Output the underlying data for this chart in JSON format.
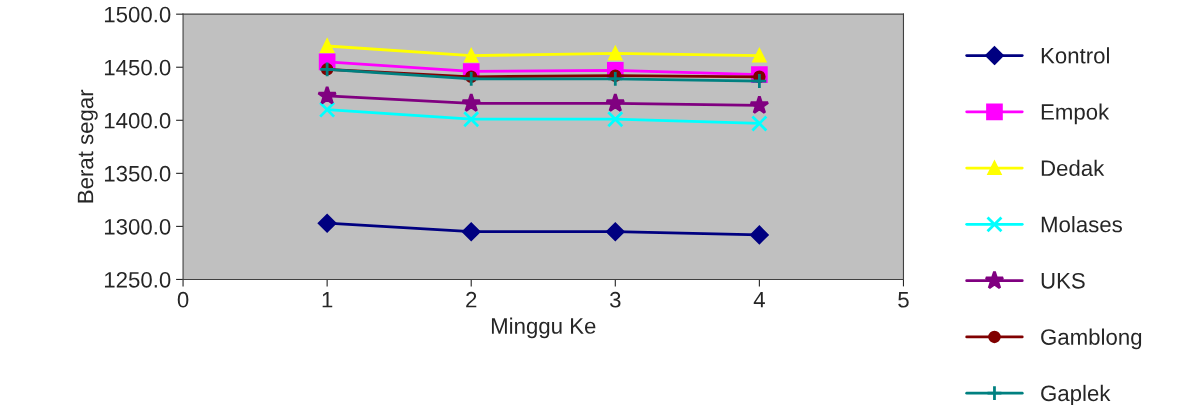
{
  "chart_data": {
    "type": "line",
    "xlabel": "Minggu Ke",
    "ylabel": "Berat segar",
    "x": [
      1,
      2,
      3,
      4
    ],
    "xlim": [
      0,
      5
    ],
    "xticks": [
      0,
      1,
      2,
      3,
      4,
      5
    ],
    "ylim": [
      1250,
      1500
    ],
    "yticks": [
      {
        "value": 1250,
        "label": "1250.0"
      },
      {
        "value": 1300,
        "label": "1300.0"
      },
      {
        "value": 1350,
        "label": "1350.0"
      },
      {
        "value": 1400,
        "label": "1400.0"
      },
      {
        "value": 1450,
        "label": "1450.0"
      },
      {
        "value": 1500,
        "label": "1500.0"
      }
    ],
    "grid": false,
    "legend": "right",
    "line_style": "solid",
    "series": [
      {
        "name": "Kontrol",
        "color": "#000080",
        "marker": "diamond",
        "values": [
          1303,
          1295,
          1295,
          1292
        ]
      },
      {
        "name": "Empok",
        "color": "#ff00ff",
        "marker": "square",
        "values": [
          1455,
          1446,
          1447,
          1443
        ]
      },
      {
        "name": "Dedak",
        "color": "#ffff00",
        "marker": "triangle",
        "values": [
          1470,
          1461,
          1463,
          1461
        ]
      },
      {
        "name": "Molases",
        "color": "#00ffff",
        "marker": "cross",
        "values": [
          1410,
          1401,
          1401,
          1397
        ]
      },
      {
        "name": "UKS",
        "color": "#800080",
        "marker": "star",
        "values": [
          1423,
          1416,
          1416,
          1414
        ]
      },
      {
        "name": "Gamblong",
        "color": "#800000",
        "marker": "circle",
        "values": [
          1448,
          1441,
          1442,
          1441
        ]
      },
      {
        "name": "Gaplek",
        "color": "#008080",
        "marker": "plus",
        "values": [
          1448,
          1439,
          1439,
          1437
        ]
      }
    ]
  }
}
